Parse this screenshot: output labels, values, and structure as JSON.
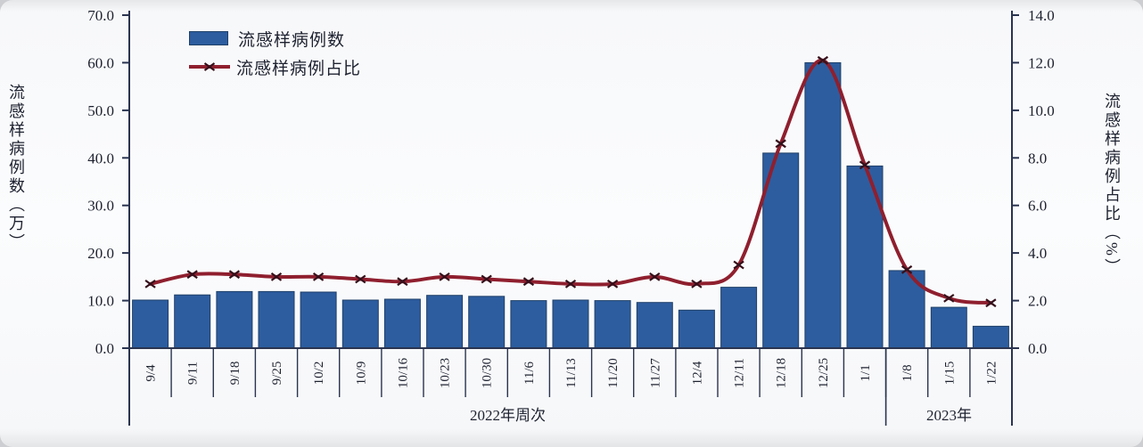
{
  "figure": {
    "background": "#f8f9fb",
    "axis_color": "#2a3450",
    "text_color": "#1e2230"
  },
  "legend": {
    "bar_label": "流感样病例数",
    "line_label": "流感样病例占比"
  },
  "chart_data": {
    "type": "combo",
    "categories": [
      "9/4",
      "9/11",
      "9/18",
      "9/25",
      "10/2",
      "10/9",
      "10/16",
      "10/23",
      "10/30",
      "11/6",
      "11/13",
      "11/20",
      "11/27",
      "12/4",
      "12/11",
      "12/18",
      "12/25",
      "1/1",
      "1/8",
      "1/15",
      "1/22"
    ],
    "series": [
      {
        "name": "流感样病例数",
        "type": "bar",
        "axis": "left",
        "color": "#2d5d9f",
        "edge_color": "#1f4068",
        "values": [
          10.1,
          11.2,
          11.9,
          11.9,
          11.8,
          10.1,
          10.3,
          11.1,
          10.9,
          10.0,
          10.1,
          10.0,
          9.6,
          8.0,
          12.8,
          41.0,
          60.0,
          38.3,
          16.3,
          8.6,
          4.6
        ]
      },
      {
        "name": "流感样病例占比",
        "type": "line",
        "axis": "right",
        "color": "#8f1f2e",
        "marker": "x",
        "marker_color": "#35101b",
        "smooth": true,
        "values": [
          2.7,
          3.1,
          3.1,
          3.0,
          3.0,
          2.9,
          2.8,
          3.0,
          2.9,
          2.8,
          2.7,
          2.7,
          3.0,
          2.7,
          3.5,
          8.6,
          12.1,
          7.7,
          3.3,
          2.1,
          1.9
        ]
      }
    ],
    "left_axis": {
      "title": "流感样病例数（万）",
      "min": 0,
      "max": 70,
      "tick_labels": [
        "0.0",
        "10.0",
        "20.0",
        "30.0",
        "40.0",
        "50.0",
        "60.0",
        "70.0"
      ]
    },
    "right_axis": {
      "title": "流感样病例占比（%）",
      "min": 0,
      "max": 14,
      "tick_labels": [
        "0.0",
        "2.0",
        "4.0",
        "6.0",
        "8.0",
        "10.0",
        "12.0",
        "14.0"
      ]
    },
    "x_axis": {
      "groups": [
        {
          "label": "2022年周次",
          "start_index": 0,
          "end_index": 17
        },
        {
          "label": "2023年",
          "start_index": 18,
          "end_index": 20
        }
      ]
    },
    "grid": false,
    "legend_position": "top-left-inside"
  }
}
